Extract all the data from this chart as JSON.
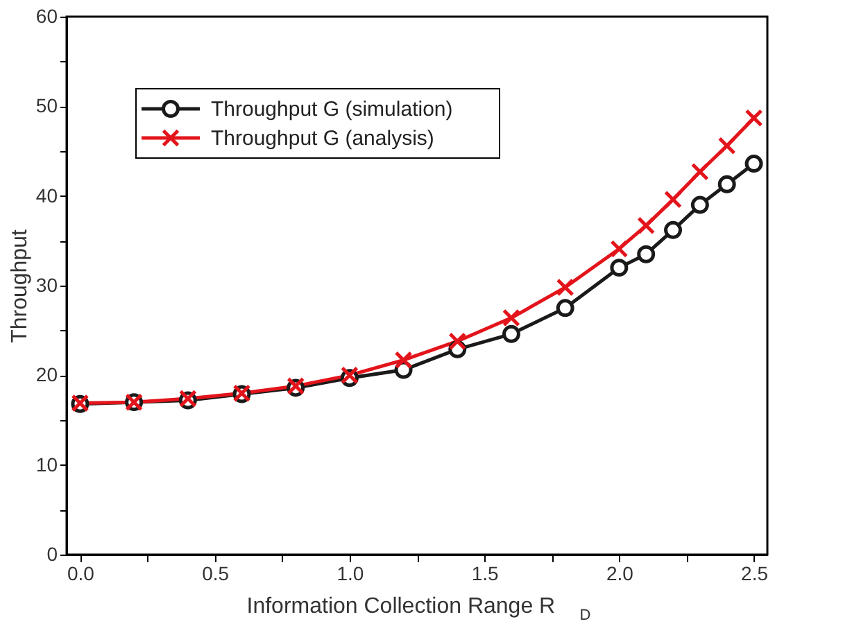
{
  "chart_data": {
    "type": "line",
    "xlabel": "Information Collection Range R$_{D}$",
    "ylabel": "Throughput",
    "x": [
      0.0,
      0.2,
      0.4,
      0.6,
      0.8,
      1.0,
      1.2,
      1.4,
      1.6,
      1.8,
      2.0,
      2.1,
      2.2,
      2.3,
      2.4,
      2.5
    ],
    "series": [
      {
        "name": "Throughput G (simulation)",
        "color": "#1a1a1a",
        "marker": "circle",
        "values": [
          16.8,
          17.0,
          17.2,
          17.9,
          18.6,
          19.7,
          20.6,
          22.9,
          24.6,
          27.5,
          32.0,
          33.5,
          36.2,
          39.0,
          41.3,
          43.6
        ]
      },
      {
        "name": "Throughput G (analysis)",
        "color": "#e3141b",
        "marker": "cross",
        "values": [
          16.9,
          17.0,
          17.4,
          18.0,
          18.8,
          20.0,
          21.7,
          23.8,
          26.4,
          29.8,
          34.1,
          36.7,
          39.6,
          42.7,
          45.6,
          48.7
        ]
      }
    ],
    "xlim": [
      -0.05,
      2.55
    ],
    "xticks": [
      {
        "value": 0,
        "label": "0.0"
      },
      {
        "value": 0.25,
        "label": null
      },
      {
        "value": 0.5,
        "label": "0.5"
      },
      {
        "value": 0.75,
        "label": null
      },
      {
        "value": 1,
        "label": "1.0"
      },
      {
        "value": 1.25,
        "label": null
      },
      {
        "value": 1.5,
        "label": "1.5"
      },
      {
        "value": 1.75,
        "label": null
      },
      {
        "value": 2,
        "label": "2.0"
      },
      {
        "value": 2.25,
        "label": null
      },
      {
        "value": 2.5,
        "label": "2.5"
      }
    ],
    "ylim": [
      0,
      60
    ],
    "yticks": [
      0,
      {
        "value": 5,
        "label": null
      },
      10,
      {
        "value": 15,
        "label": null
      },
      20,
      {
        "value": 25,
        "label": null
      },
      30,
      {
        "value": 35,
        "label": null
      },
      40,
      {
        "value": 45,
        "label": null
      },
      50,
      {
        "value": 55,
        "label": null
      },
      60
    ],
    "grid": false,
    "legend": "top left",
    "line_style": "solid"
  }
}
